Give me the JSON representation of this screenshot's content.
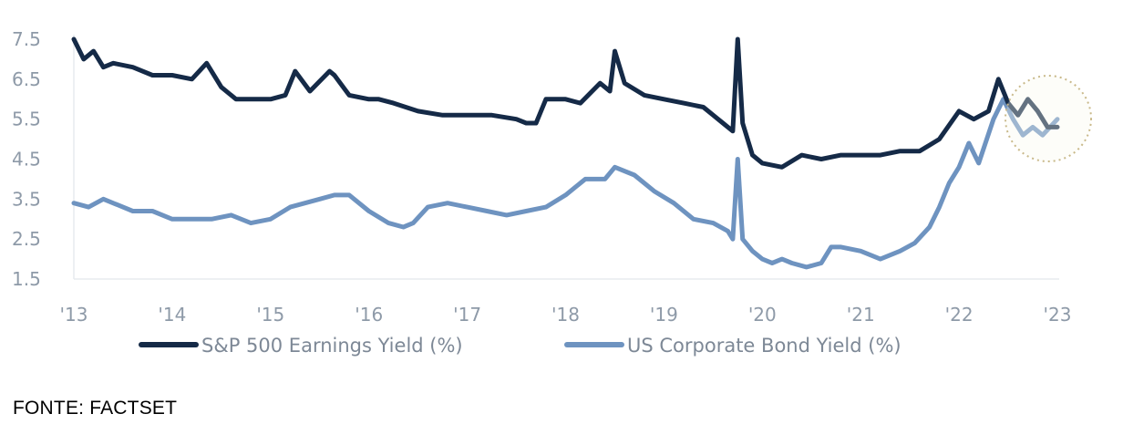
{
  "chart_data": {
    "type": "line",
    "title": "",
    "xlabel": "",
    "ylabel": "",
    "ylim": [
      1.5,
      7.5
    ],
    "xlim": [
      2013,
      2023
    ],
    "y_ticks": [
      "7.5",
      "6.5",
      "5.5",
      "4.5",
      "3.5",
      "2.5",
      "1.5"
    ],
    "x_ticks": [
      "'13",
      "'14",
      "'15",
      "'16",
      "'17",
      "'18",
      "'19",
      "'20",
      "'21",
      "'22",
      "'23"
    ],
    "grid": false,
    "legend_position": "bottom",
    "series": [
      {
        "name": "S&P 500 Earnings Yield (%)",
        "color": "#152a47",
        "x": [
          2013.0,
          2013.1,
          2013.2,
          2013.3,
          2013.4,
          2013.6,
          2013.8,
          2014.0,
          2014.2,
          2014.35,
          2014.5,
          2014.65,
          2014.8,
          2015.0,
          2015.15,
          2015.25,
          2015.4,
          2015.6,
          2015.65,
          2015.8,
          2016.0,
          2016.1,
          2016.25,
          2016.5,
          2016.75,
          2017.0,
          2017.25,
          2017.5,
          2017.6,
          2017.7,
          2017.8,
          2018.0,
          2018.15,
          2018.35,
          2018.45,
          2018.5,
          2018.6,
          2018.8,
          2019.0,
          2019.2,
          2019.4,
          2019.6,
          2019.7,
          2019.75,
          2019.8,
          2019.9,
          2020.0,
          2020.2,
          2020.4,
          2020.6,
          2020.8,
          2021.0,
          2021.2,
          2021.4,
          2021.6,
          2021.8,
          2022.0,
          2022.15,
          2022.3,
          2022.4,
          2022.5,
          2022.6,
          2022.7,
          2022.8,
          2022.9,
          2023.0
        ],
        "values": [
          7.5,
          7.0,
          7.2,
          6.8,
          6.9,
          6.8,
          6.6,
          6.6,
          6.5,
          6.9,
          6.3,
          6.0,
          6.0,
          6.0,
          6.1,
          6.7,
          6.2,
          6.7,
          6.6,
          6.1,
          6.0,
          6.0,
          5.9,
          5.7,
          5.6,
          5.6,
          5.6,
          5.5,
          5.4,
          5.4,
          6.0,
          6.0,
          5.9,
          6.4,
          6.2,
          7.2,
          6.4,
          6.1,
          6.0,
          5.9,
          5.8,
          5.4,
          5.2,
          7.5,
          5.4,
          4.6,
          4.4,
          4.3,
          4.6,
          4.5,
          4.6,
          4.6,
          4.6,
          4.7,
          4.7,
          5.0,
          5.7,
          5.5,
          5.7,
          6.5,
          5.9,
          5.6,
          6.0,
          5.7,
          5.3,
          5.3
        ]
      },
      {
        "name": "US Corporate Bond Yield (%)",
        "color": "#6e93c0",
        "x": [
          2013.0,
          2013.15,
          2013.3,
          2013.6,
          2013.8,
          2014.0,
          2014.2,
          2014.4,
          2014.6,
          2014.8,
          2015.0,
          2015.2,
          2015.35,
          2015.5,
          2015.65,
          2015.8,
          2016.0,
          2016.2,
          2016.35,
          2016.45,
          2016.6,
          2016.8,
          2017.0,
          2017.2,
          2017.4,
          2017.6,
          2017.8,
          2018.0,
          2018.2,
          2018.4,
          2018.5,
          2018.7,
          2018.9,
          2019.1,
          2019.3,
          2019.5,
          2019.65,
          2019.7,
          2019.75,
          2019.8,
          2019.9,
          2020.0,
          2020.1,
          2020.2,
          2020.3,
          2020.45,
          2020.6,
          2020.7,
          2020.8,
          2021.0,
          2021.2,
          2021.4,
          2021.55,
          2021.7,
          2021.8,
          2021.9,
          2022.0,
          2022.1,
          2022.2,
          2022.35,
          2022.45,
          2022.55,
          2022.65,
          2022.75,
          2022.85,
          2023.0
        ],
        "values": [
          3.4,
          3.3,
          3.5,
          3.2,
          3.2,
          3.0,
          3.0,
          3.0,
          3.1,
          2.9,
          3.0,
          3.3,
          3.4,
          3.5,
          3.6,
          3.6,
          3.2,
          2.9,
          2.8,
          2.9,
          3.3,
          3.4,
          3.3,
          3.2,
          3.1,
          3.2,
          3.3,
          3.6,
          4.0,
          4.0,
          4.3,
          4.1,
          3.7,
          3.4,
          3.0,
          2.9,
          2.7,
          2.5,
          4.5,
          2.5,
          2.2,
          2.0,
          1.9,
          2.0,
          1.9,
          1.8,
          1.9,
          2.3,
          2.3,
          2.2,
          2.0,
          2.2,
          2.4,
          2.8,
          3.3,
          3.9,
          4.3,
          4.9,
          4.4,
          5.5,
          6.0,
          5.5,
          5.1,
          5.3,
          5.1,
          5.5
        ]
      }
    ]
  },
  "source_label": "FONTE: FACTSET"
}
